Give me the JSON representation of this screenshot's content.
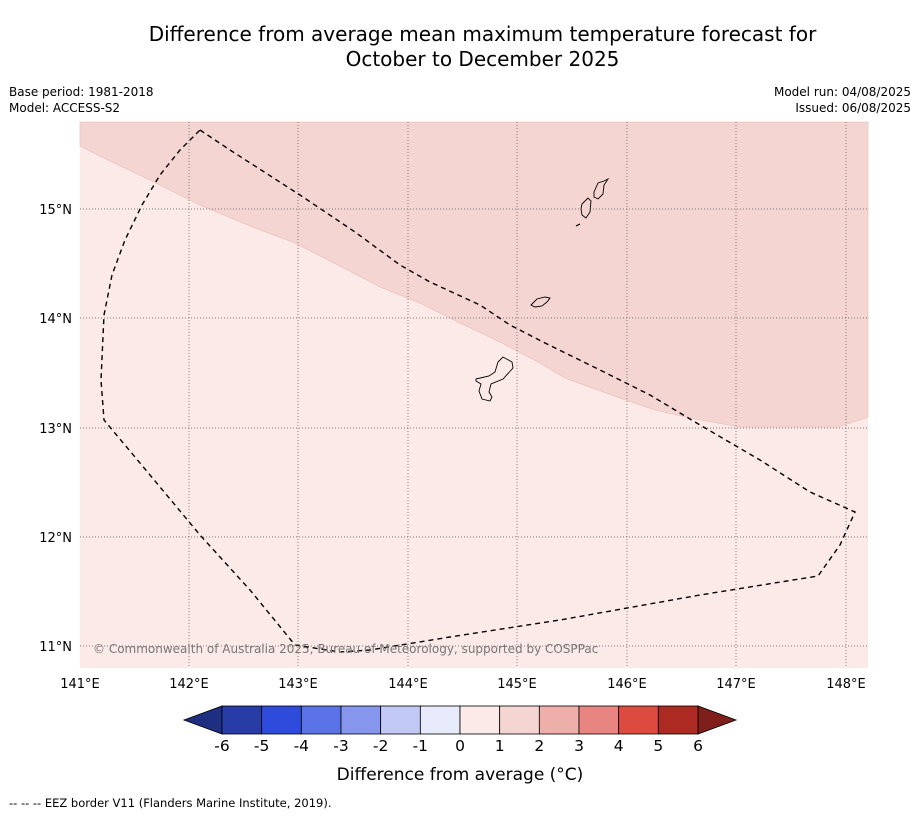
{
  "title_line1": "Difference from average mean maximum temperature forecast for",
  "title_line2": "October to December 2025",
  "base_period": "Base period: 1981-2018",
  "model": "Model: ACCESS-S2",
  "model_run": "Model run: 04/08/2025",
  "issued": "Issued: 06/08/2025",
  "copyright": "© Commonwealth of Australia 2025, Bureau of Meteorology, supported by COSPPac",
  "lon_labels": [
    "141°E",
    "142°E",
    "143°E",
    "144°E",
    "145°E",
    "146°E",
    "147°E",
    "148°E"
  ],
  "lat_labels": [
    "15°N",
    "14°N",
    "13°N",
    "12°N",
    "11°N"
  ],
  "colorbar_ticks": [
    "-6",
    "-5",
    "-4",
    "-3",
    "-2",
    "-1",
    "0",
    "1",
    "2",
    "3",
    "4",
    "5",
    "6"
  ],
  "colorbar_colors": [
    "#283ca8",
    "#2f4bdb",
    "#5a73e6",
    "#8696ec",
    "#c2c9f4",
    "#e6eafb",
    "#fbeae8",
    "#f5d5d2",
    "#eeaeaa",
    "#e88580",
    "#dd4a40",
    "#ad2a22"
  ],
  "colorbar_under": "#1e2e80",
  "colorbar_over": "#7e1f1b",
  "colorbar_label": "Difference from average (°C)",
  "footer": "-- -- -- EEZ border V11 (Flanders Marine Institute, 2019).",
  "colors": {
    "zone_0_1": "#fbeae8",
    "zone_1_2": "#f5d5d2"
  },
  "islands": [
    "Guam",
    "Rota",
    "Tinian",
    "Saipan"
  ]
}
